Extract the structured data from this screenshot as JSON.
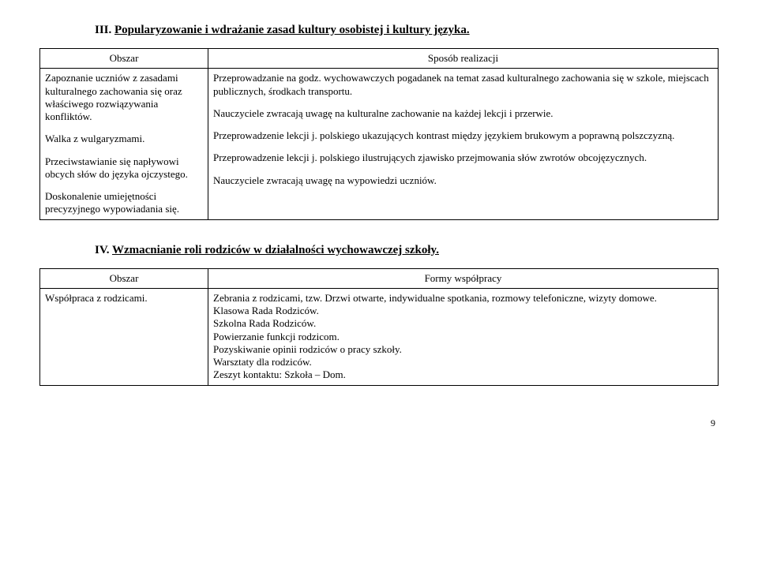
{
  "section3": {
    "roman": "III.",
    "title": "Popularyzowanie i wdrażanie zasad kultury osobistej i kultury języka.",
    "header_left": "Obszar",
    "header_right": "Sposób realizacji",
    "left_block1": "Zapoznanie uczniów z zasadami kulturalnego zachowania się oraz właściwego rozwiązywania konfliktów.",
    "left_block2": "Walka z wulgaryzmami.",
    "left_block3": "Przeciwstawianie się napływowi obcych słów do języka ojczystego.",
    "left_block4": "Doskonalenie umiejętności precyzyjnego wypowiadania się.",
    "right_block1a": "Przeprowadzanie na godz. wychowawczych pogadanek na temat zasad kulturalnego zachowania się w szkole, miejscach publicznych, środkach transportu.",
    "right_block1b": "Nauczyciele zwracają uwagę na kulturalne zachowanie na każdej lekcji i przerwie.",
    "right_block2": "Przeprowadzenie lekcji j. polskiego ukazujących kontrast między językiem brukowym a poprawną polszczyzną.",
    "right_block3": "Przeprowadzenie lekcji j. polskiego ilustrujących zjawisko przejmowania słów zwrotów obcojęzycznych.",
    "right_block4": "Nauczyciele zwracają uwagę na wypowiedzi uczniów."
  },
  "section4": {
    "roman": "IV.",
    "title": "Wzmacnianie roli rodziców w działalności wychowawczej szkoły.",
    "header_left": "Obszar",
    "header_right": "Formy współpracy",
    "left_block1": "Współpraca z rodzicami.",
    "right_line1": "Zebrania z rodzicami, tzw. Drzwi otwarte, indywidualne spotkania, rozmowy telefoniczne, wizyty domowe.",
    "right_line2": "Klasowa Rada Rodziców.",
    "right_line3": "Szkolna Rada Rodziców.",
    "right_line4": "Powierzanie funkcji rodzicom.",
    "right_line5": "Pozyskiwanie opinii rodziców o pracy szkoły.",
    "right_line6": "Warsztaty dla rodziców.",
    "right_line7": "Zeszyt kontaktu: Szkoła – Dom."
  },
  "page_number": "9"
}
